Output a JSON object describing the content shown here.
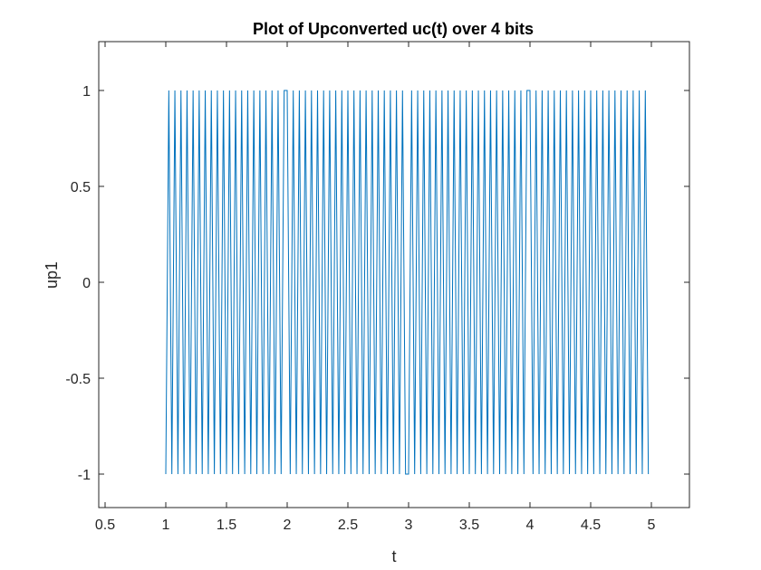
{
  "chart_data": {
    "type": "line",
    "title": "Plot of Upconverted uc(t) over 4 bits",
    "xlabel": "t",
    "ylabel": "up1",
    "xlim": [
      0.45,
      5.3
    ],
    "ylim": [
      -1.2,
      1.25
    ],
    "x_ticks": [
      0.5,
      1,
      1.5,
      2,
      2.5,
      3,
      3.5,
      4,
      4.5,
      5
    ],
    "x_tick_labels": [
      "0.5",
      "1",
      "1.5",
      "2",
      "2.5",
      "3",
      "3.5",
      "4",
      "4.5",
      "5"
    ],
    "y_ticks": [
      -1,
      -0.5,
      0,
      0.5,
      1
    ],
    "y_tick_labels": [
      "-1",
      "-0.5",
      "0",
      "0.5",
      "1"
    ],
    "grid": false,
    "legend": "none",
    "series": [
      {
        "color": "#0072BD",
        "x_start": 1.0,
        "x_end": 4.975,
        "cycles_per_bit": 20,
        "bits": [
          0,
          1,
          0,
          1
        ],
        "amplitude": 1,
        "description_points": "triangle-shaped carrier sampled at peaks; phase flips at t = 2, 3, 4"
      }
    ],
    "colors": {
      "line": "#0072BD",
      "axis": "#262626",
      "background": "#ffffff"
    }
  }
}
